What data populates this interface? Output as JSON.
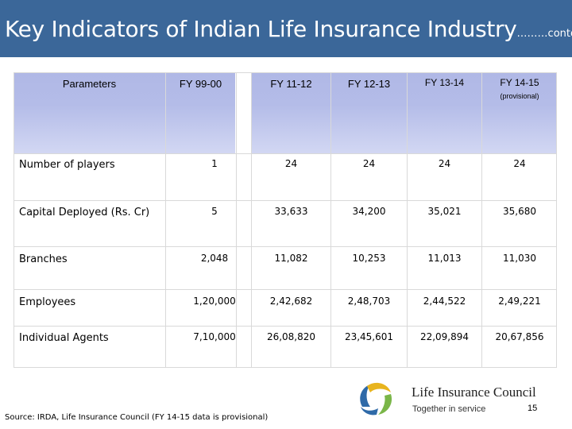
{
  "header": {
    "title": "Key Indicators of Indian Life Insurance Industry",
    "suffix": "………contd"
  },
  "table": {
    "columns": [
      {
        "label": "Parameters",
        "sub": ""
      },
      {
        "label": "FY 99-00",
        "sub": ""
      },
      {
        "label": "FY 11-12",
        "sub": ""
      },
      {
        "label": "FY 12-13",
        "sub": ""
      },
      {
        "label": "FY 13-14",
        "sub": ""
      },
      {
        "label": "FY 14-15",
        "sub": "(provisional)"
      }
    ],
    "rows": [
      {
        "label": "Number of players",
        "values": [
          "1",
          "24",
          "24",
          "24",
          "24"
        ]
      },
      {
        "label": "Capital Deployed (Rs. Cr)",
        "values": [
          "5",
          "33,633",
          "34,200",
          "35,021",
          "35,680"
        ]
      },
      {
        "label": "Branches",
        "values": [
          "2,048",
          "11,082",
          "10,253",
          "11,013",
          "11,030"
        ]
      },
      {
        "label": "Employees",
        "values": [
          "1,20,000",
          "2,42,682",
          "2,48,703",
          "2,44,522",
          "2,49,221"
        ]
      },
      {
        "label": "Individual Agents",
        "values": [
          "7,10,000",
          "26,08,820",
          "23,45,601",
          "22,09,894",
          "20,67,856"
        ]
      }
    ]
  },
  "footer": {
    "source": "Source: IRDA,  Life Insurance Council  (FY 14-15 data is provisional)",
    "org_name": "Life Insurance Council",
    "org_tagline": "Together in service",
    "page_number": "15"
  },
  "colors": {
    "title_bar": "#3b6799",
    "header_fill": "#b4bce8",
    "grid": "#d9d9d9"
  },
  "icons": [
    "life-insurance-council-logo"
  ]
}
